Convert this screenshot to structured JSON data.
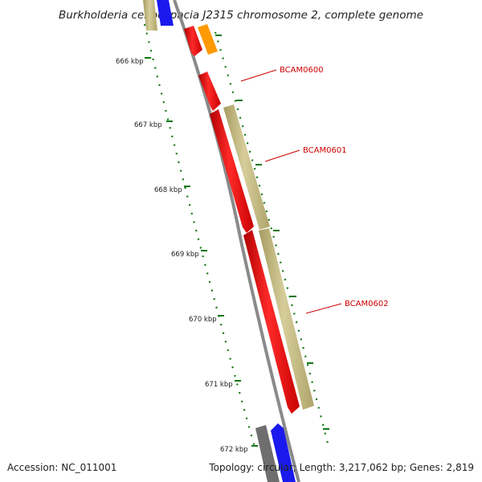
{
  "title": "Burkholderia cenocepacia J2315 chromosome 2, complete genome",
  "footer": {
    "accession": "Accession: NC_011001",
    "summary": "Topology: circular; Length: 3,217,062 bp; Genes: 2,819"
  },
  "ticks": [
    "666 kbp",
    "667 kbp",
    "668 kbp",
    "669 kbp",
    "670 kbp",
    "671 kbp",
    "672 kbp"
  ],
  "gene_labels": [
    "BCAM0600",
    "BCAM0601",
    "BCAM0602"
  ],
  "colors": {
    "backbone": "#8a8a8a",
    "gene_red": "#ee1111",
    "gene_tan": "#c2b880",
    "gene_orange": "#ff9900",
    "gene_blue": "#1a1aee",
    "gene_gray": "#6e6e6e",
    "tick": "#117711",
    "label_red": "#cc0000"
  }
}
